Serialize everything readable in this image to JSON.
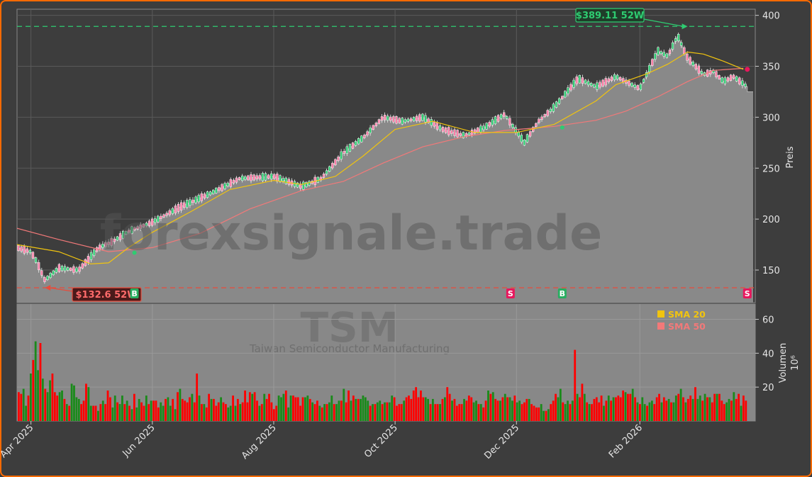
{
  "chart_data": {
    "type": "candlestick",
    "watermark": "forexsignale.trade",
    "ticker": "TSM",
    "company": "Taiwan Semiconductor Manufacturing",
    "price_panel": {
      "ylabel": "Preis",
      "ylim": [
        118,
        406
      ],
      "yticks": [
        150,
        200,
        250,
        300,
        350,
        400
      ],
      "high_52w": {
        "label": "$389.11 52W",
        "value": 389.11,
        "color": "#2ecc71"
      },
      "low_52w": {
        "label": "$132.6 52W",
        "value": 132.6,
        "color": "#e74c3c"
      },
      "last_close_step": 325,
      "close_series": {
        "dates": [
          "2025-03-25",
          "2025-04-01",
          "2025-04-04",
          "2025-04-08",
          "2025-04-15",
          "2025-04-25",
          "2025-05-05",
          "2025-05-12",
          "2025-05-20",
          "2025-06-01",
          "2025-06-15",
          "2025-07-01",
          "2025-07-15",
          "2025-08-01",
          "2025-08-15",
          "2025-08-25",
          "2025-09-05",
          "2025-09-15",
          "2025-09-25",
          "2025-10-05",
          "2025-10-15",
          "2025-10-25",
          "2025-11-05",
          "2025-11-15",
          "2025-11-25",
          "2025-12-05",
          "2025-12-12",
          "2025-12-20",
          "2026-01-01",
          "2026-01-10",
          "2026-01-20",
          "2026-02-01",
          "2026-02-10",
          "2026-02-15",
          "2026-02-20",
          "2026-02-25",
          "2026-03-05",
          "2026-03-10",
          "2026-03-15",
          "2026-03-20",
          "2026-03-27"
        ],
        "values": [
          172,
          168,
          158,
          140,
          152,
          150,
          172,
          178,
          188,
          197,
          212,
          226,
          240,
          242,
          232,
          240,
          265,
          280,
          300,
          296,
          300,
          288,
          282,
          290,
          303,
          275,
          296,
          310,
          338,
          330,
          340,
          328,
          365,
          360,
          380,
          358,
          342,
          345,
          335,
          340,
          330
        ]
      },
      "sma20": {
        "name": "SMA 20",
        "color": "#f1c40f",
        "dates": [
          "2025-03-25",
          "2025-04-15",
          "2025-05-01",
          "2025-05-10",
          "2025-05-20",
          "2025-06-01",
          "2025-06-20",
          "2025-07-10",
          "2025-08-01",
          "2025-08-15",
          "2025-09-01",
          "2025-09-15",
          "2025-10-01",
          "2025-10-20",
          "2025-11-10",
          "2025-12-01",
          "2025-12-20",
          "2026-01-10",
          "2026-01-20",
          "2026-02-05",
          "2026-02-15",
          "2026-02-25",
          "2026-03-05",
          "2026-03-15",
          "2026-03-25"
        ],
        "values": [
          175,
          168,
          156,
          157,
          172,
          187,
          207,
          229,
          238,
          234,
          242,
          262,
          288,
          296,
          285,
          285,
          293,
          316,
          332,
          343,
          352,
          364,
          362,
          355,
          347
        ]
      },
      "sma50": {
        "name": "SMA 50",
        "color": "#f27979",
        "dates": [
          "2025-03-25",
          "2025-04-15",
          "2025-05-10",
          "2025-06-01",
          "2025-06-25",
          "2025-07-20",
          "2025-08-15",
          "2025-09-05",
          "2025-09-25",
          "2025-10-15",
          "2025-11-05",
          "2025-11-25",
          "2025-12-20",
          "2026-01-10",
          "2026-01-25",
          "2026-02-10",
          "2026-02-25",
          "2026-03-10",
          "2026-03-25"
        ],
        "values": [
          191,
          180,
          168,
          172,
          186,
          210,
          228,
          237,
          255,
          271,
          281,
          287,
          291,
          297,
          306,
          320,
          335,
          346,
          348
        ]
      },
      "signals": [
        {
          "type": "B",
          "date": "2025-05-23",
          "color": "#27ae60"
        },
        {
          "type": "S",
          "date": "2025-11-28",
          "color": "#e8175d"
        },
        {
          "type": "B",
          "date": "2025-12-24",
          "color": "#27ae60"
        },
        {
          "type": "S",
          "date": "2026-03-27",
          "color": "#e8175d"
        }
      ]
    },
    "volume_panel": {
      "ylabel": "Volumen",
      "unit": "10⁶",
      "ylim": [
        0,
        69
      ],
      "yticks": [
        20,
        40,
        60
      ],
      "up_color": "#1a8a1a",
      "down_color": "#ff0000",
      "values": [
        17,
        16,
        19,
        9,
        15,
        28,
        36,
        47,
        30,
        46,
        25,
        19,
        17,
        24,
        28,
        17,
        15,
        17,
        18,
        13,
        10,
        9,
        22,
        21,
        14,
        13,
        10,
        12,
        22,
        20,
        9,
        9,
        9,
        6,
        10,
        12,
        10,
        18,
        14,
        8,
        15,
        11,
        10,
        15,
        10,
        12,
        9,
        7,
        16,
        8,
        13,
        11,
        9,
        15,
        10,
        12,
        12,
        12,
        8,
        11,
        9,
        13,
        14,
        9,
        13,
        7,
        17,
        19,
        13,
        12,
        11,
        14,
        16,
        11,
        28,
        15,
        10,
        10,
        8,
        16,
        13,
        13,
        9,
        11,
        14,
        11,
        10,
        8,
        9,
        15,
        9,
        13,
        10,
        11,
        18,
        11,
        17,
        16,
        17,
        12,
        9,
        10,
        16,
        13,
        16,
        11,
        7,
        9,
        15,
        14,
        16,
        18,
        8,
        15,
        15,
        14,
        14,
        9,
        14,
        14,
        15,
        13,
        11,
        10,
        12,
        9,
        8,
        10,
        10,
        11,
        15,
        10,
        10,
        12,
        12,
        19,
        11,
        18,
        12,
        15,
        13,
        13,
        13,
        15,
        14,
        12,
        9,
        10,
        10,
        11,
        12,
        10,
        11,
        11,
        11,
        15,
        14,
        9,
        10,
        10,
        12,
        14,
        15,
        13,
        18,
        20,
        14,
        18,
        14,
        14,
        13,
        10,
        13,
        10,
        10,
        10,
        13,
        14,
        20,
        16,
        12,
        13,
        9,
        10,
        10,
        13,
        12,
        15,
        14,
        11,
        12,
        10,
        10,
        8,
        12,
        18,
        16,
        17,
        13,
        12,
        12,
        14,
        16,
        14,
        14,
        12,
        15,
        11,
        12,
        10,
        11,
        13,
        13,
        10,
        9,
        8,
        8,
        10,
        6,
        6,
        7,
        10,
        12,
        16,
        14,
        19,
        11,
        10,
        12,
        10,
        12,
        42,
        16,
        14,
        22,
        16,
        11,
        10,
        10,
        13,
        14,
        11,
        15,
        9,
        12,
        15,
        12,
        14,
        14,
        15,
        14,
        18,
        17,
        16,
        16,
        19,
        14,
        11,
        10,
        14,
        10,
        9,
        11,
        12,
        10,
        14,
        16,
        11,
        14,
        12,
        13,
        11,
        11,
        15,
        16,
        19,
        14,
        11,
        13,
        15,
        13,
        20,
        13,
        15,
        12,
        16,
        14,
        14,
        11,
        16,
        16,
        16,
        12,
        10,
        11,
        13,
        12,
        17,
        13,
        16,
        9,
        15,
        12
      ]
    },
    "x_axis": {
      "start_date": "2025-03-25",
      "end_date": "2026-03-31",
      "ticks": [
        {
          "date": "2025-04-01",
          "label": "Apr 2025"
        },
        {
          "date": "2025-06-01",
          "label": "Jun 2025"
        },
        {
          "date": "2025-08-01",
          "label": "Aug 2025"
        },
        {
          "date": "2025-10-01",
          "label": "Oct 2025"
        },
        {
          "date": "2025-12-01",
          "label": "Dec 2025"
        },
        {
          "date": "2026-02-01",
          "label": "Feb 2026"
        }
      ]
    },
    "legend": [
      {
        "name": "SMA 20",
        "color": "#f1c40f"
      },
      {
        "name": "SMA 50",
        "color": "#f27979"
      }
    ],
    "legend_position": "volume-panel-top-right"
  }
}
